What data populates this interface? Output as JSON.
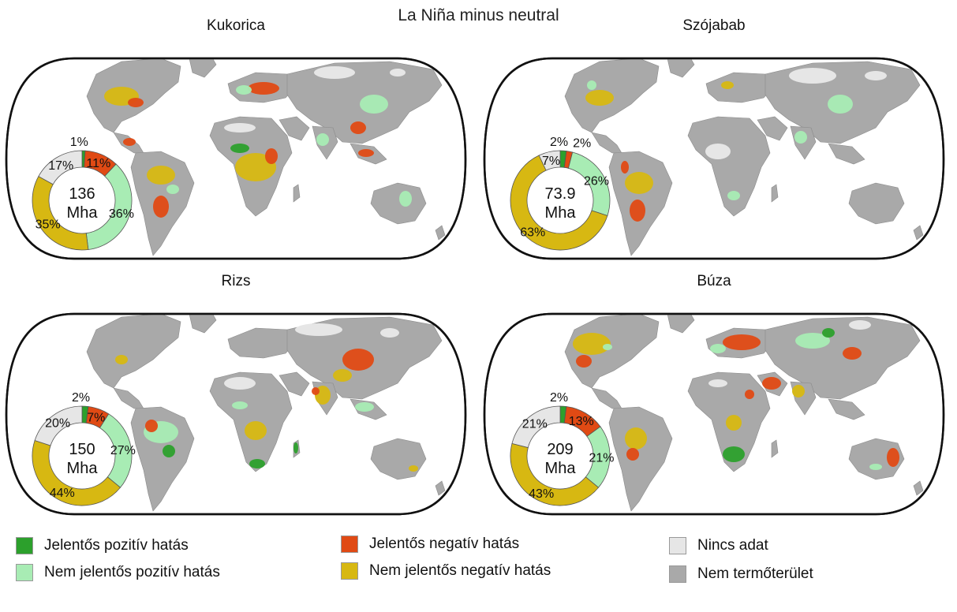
{
  "title": "La Niña minus neutral",
  "colors": {
    "sig_pos": "#2ca02c",
    "nonsig_pos": "#a8ecb4",
    "sig_neg": "#e04a14",
    "nonsig_neg": "#d7b812",
    "no_data": "#e6e6e6",
    "non_crop": "#a9a9a9"
  },
  "panels": [
    {
      "name": "Kukorica",
      "total": "136",
      "unit": "Mha",
      "slices": [
        {
          "key": "sig_pos",
          "value": 1,
          "label": "1%"
        },
        {
          "key": "sig_neg",
          "value": 11,
          "label": "11%"
        },
        {
          "key": "nonsig_pos",
          "value": 36,
          "label": "36%"
        },
        {
          "key": "nonsig_neg",
          "value": 35,
          "label": "35%"
        },
        {
          "key": "no_data",
          "value": 17,
          "label": "17%"
        }
      ]
    },
    {
      "name": "Szójabab",
      "total": "73.9",
      "unit": "Mha",
      "slices": [
        {
          "key": "sig_pos",
          "value": 2,
          "label": "2%"
        },
        {
          "key": "sig_neg",
          "value": 2,
          "label": "2%"
        },
        {
          "key": "nonsig_pos",
          "value": 26,
          "label": "26%"
        },
        {
          "key": "nonsig_neg",
          "value": 63,
          "label": "63%"
        },
        {
          "key": "no_data",
          "value": 7,
          "label": "7%"
        }
      ]
    },
    {
      "name": "Rizs",
      "total": "150",
      "unit": "Mha",
      "slices": [
        {
          "key": "sig_pos",
          "value": 2,
          "label": "2%"
        },
        {
          "key": "sig_neg",
          "value": 7,
          "label": "7%"
        },
        {
          "key": "nonsig_pos",
          "value": 27,
          "label": "27%"
        },
        {
          "key": "nonsig_neg",
          "value": 44,
          "label": "44%"
        },
        {
          "key": "no_data",
          "value": 20,
          "label": "20%"
        }
      ]
    },
    {
      "name": "Búza",
      "total": "209",
      "unit": "Mha",
      "slices": [
        {
          "key": "sig_pos",
          "value": 2,
          "label": "2%"
        },
        {
          "key": "sig_neg",
          "value": 13,
          "label": "13%"
        },
        {
          "key": "nonsig_pos",
          "value": 21,
          "label": "21%"
        },
        {
          "key": "nonsig_neg",
          "value": 43,
          "label": "43%"
        },
        {
          "key": "no_data",
          "value": 21,
          "label": "21%"
        }
      ]
    }
  ],
  "legend": [
    {
      "key": "sig_pos",
      "label": "Jelentős pozitív hatás"
    },
    {
      "key": "nonsig_pos",
      "label": "Nem jelentős pozitív hatás"
    },
    {
      "key": "sig_neg",
      "label": "Jelentős negatív hatás"
    },
    {
      "key": "nonsig_neg",
      "label": "Nem jelentős negatív hatás"
    },
    {
      "key": "no_data",
      "label": "Nincs adat"
    },
    {
      "key": "non_crop",
      "label": "Nem termőterület"
    }
  ]
}
